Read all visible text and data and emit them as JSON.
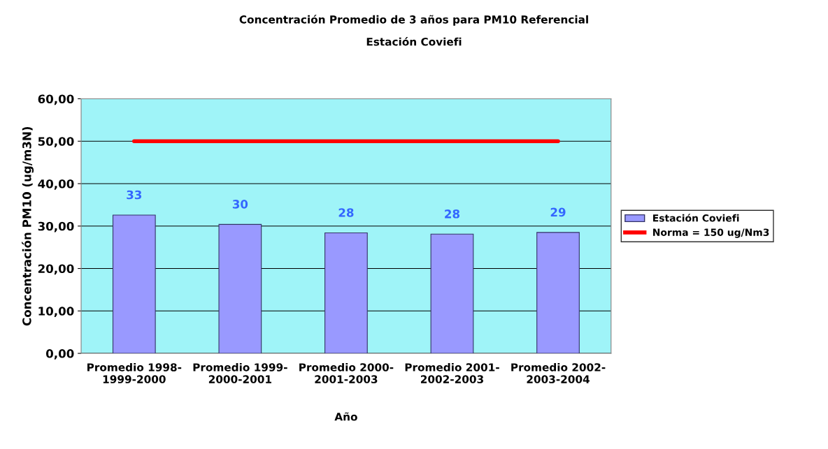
{
  "chart_data": {
    "type": "bar",
    "title": "Concentración Promedio de 3 años para PM10 Referencial",
    "subtitle": "Estación Coviefi",
    "xlabel": "Año",
    "ylabel": "Concentración PM10 (ug/m3N)",
    "categories": [
      "Promedio 1998-\n1999-2000",
      "Promedio 1999-\n2000-2001",
      "Promedio 2000-\n2001-2003",
      "Promedio 2001-\n2002-2003",
      "Promedio 2002-\n2003-2004"
    ],
    "series": [
      {
        "name": "Estación Coviefi",
        "color": "#9999ff",
        "values": [
          32.6,
          30.4,
          28.4,
          28.1,
          28.5
        ],
        "value_labels": [
          "33",
          "30",
          "28",
          "28",
          "29"
        ]
      },
      {
        "name": "Norma = 150 ug/Nm3",
        "type": "line",
        "color": "#ff0000",
        "values": [
          50,
          50,
          50,
          50,
          50
        ]
      }
    ],
    "ylim": [
      0,
      60
    ],
    "yticks": [
      {
        "value": 0,
        "label": "0,00"
      },
      {
        "value": 10,
        "label": "10,00"
      },
      {
        "value": 20,
        "label": "20,00"
      },
      {
        "value": 30,
        "label": "30,00"
      },
      {
        "value": 40,
        "label": "40,00"
      },
      {
        "value": 50,
        "label": "50,00"
      },
      {
        "value": 60,
        "label": "60,00"
      }
    ],
    "grid": "y",
    "legend": "right",
    "marker": "none",
    "line_style": "solid"
  }
}
